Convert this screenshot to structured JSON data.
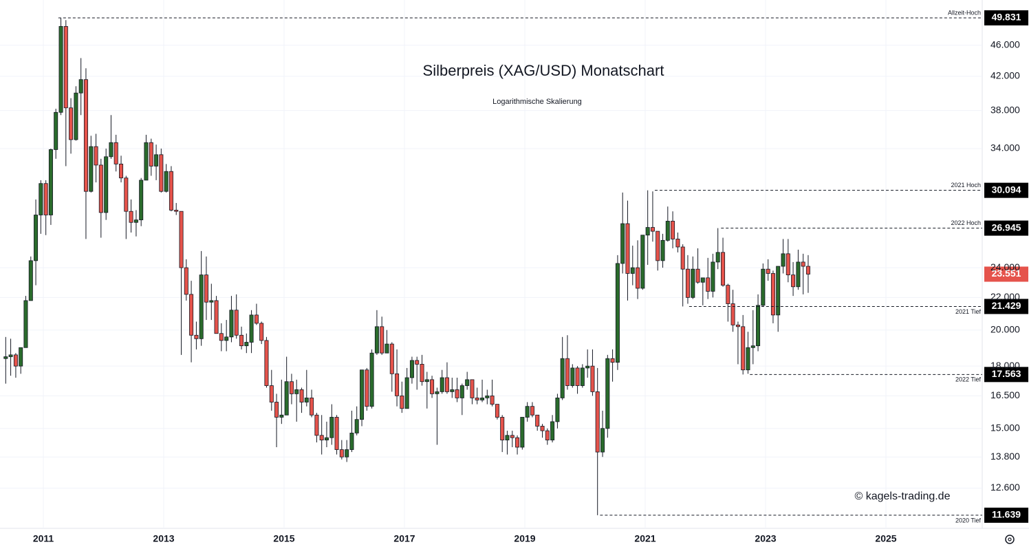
{
  "chart_data": {
    "type": "candlestick",
    "title": "Silberpreis (XAG/USD) Monatschart",
    "subtitle": "Logarithmische Skalierung",
    "watermark": "© kagels-trading.de",
    "log_scale": true,
    "grid": true,
    "up_color": "#2a6b2c",
    "down_color": "#e5534b",
    "xlim": [
      2010.28,
      2026.6
    ],
    "xticks": [
      2011,
      2013,
      2015,
      2017,
      2019,
      2021,
      2023,
      2025
    ],
    "ylim": [
      11.2,
      52.5
    ],
    "yticks": [
      {
        "value": 12.6,
        "label": "12.600"
      },
      {
        "value": 13.8,
        "label": "13.800"
      },
      {
        "value": 15,
        "label": "15.000"
      },
      {
        "value": 16.5,
        "label": "16.500"
      },
      {
        "value": 18,
        "label": "18.000"
      },
      {
        "value": 20,
        "label": "20.000"
      },
      {
        "value": 22,
        "label": "22.000"
      },
      {
        "value": 24,
        "label": "24.000"
      },
      {
        "value": 34,
        "label": "34.000"
      },
      {
        "value": 38,
        "label": "38.000"
      },
      {
        "value": 42,
        "label": "42.000"
      },
      {
        "value": 46,
        "label": "46.000"
      }
    ],
    "levels": [
      {
        "label": "Allzeit-Hoch",
        "value": 49.831,
        "x": 2011.25
      },
      {
        "label": "2021 Hoch",
        "value": 30.094,
        "x": 2021.16
      },
      {
        "label": "2022 Hoch",
        "value": 26.945,
        "x": 2022.26
      },
      {
        "label": "2021 Tief",
        "value": 21.429,
        "x": 2021.73
      },
      {
        "label": "2022 Tief",
        "value": 17.563,
        "x": 2022.74
      },
      {
        "label": "2020 Tief",
        "value": 11.639,
        "x": 2020.25
      }
    ],
    "x": [
      2010.375,
      2010.458,
      2010.542,
      2010.625,
      2010.708,
      2010.792,
      2010.875,
      2010.958,
      2011.042,
      2011.125,
      2011.208,
      2011.292,
      2011.375,
      2011.458,
      2011.542,
      2011.625,
      2011.708,
      2011.792,
      2011.875,
      2011.958,
      2012.042,
      2012.125,
      2012.208,
      2012.292,
      2012.375,
      2012.458,
      2012.542,
      2012.625,
      2012.708,
      2012.792,
      2012.875,
      2012.958,
      2013.042,
      2013.125,
      2013.208,
      2013.292,
      2013.375,
      2013.458,
      2013.542,
      2013.625,
      2013.708,
      2013.792,
      2013.875,
      2013.958,
      2014.042,
      2014.125,
      2014.208,
      2014.292,
      2014.375,
      2014.458,
      2014.542,
      2014.625,
      2014.708,
      2014.792,
      2014.875,
      2014.958,
      2015.042,
      2015.125,
      2015.208,
      2015.292,
      2015.375,
      2015.458,
      2015.542,
      2015.625,
      2015.708,
      2015.792,
      2015.875,
      2015.958,
      2016.042,
      2016.125,
      2016.208,
      2016.292,
      2016.375,
      2016.458,
      2016.542,
      2016.625,
      2016.708,
      2016.792,
      2016.875,
      2016.958,
      2017.042,
      2017.125,
      2017.208,
      2017.292,
      2017.375,
      2017.458,
      2017.542,
      2017.625,
      2017.708,
      2017.792,
      2017.875,
      2017.958,
      2018.042,
      2018.125,
      2018.208,
      2018.292,
      2018.375,
      2018.458,
      2018.542,
      2018.625,
      2018.708,
      2018.792,
      2018.875,
      2018.958,
      2019.042,
      2019.125,
      2019.208,
      2019.292,
      2019.375,
      2019.458,
      2019.542,
      2019.625,
      2019.708,
      2019.792,
      2019.875,
      2019.958,
      2020.042,
      2020.125,
      2020.208,
      2020.292,
      2020.375,
      2020.458,
      2020.542,
      2020.625,
      2020.708,
      2020.792,
      2020.875,
      2020.958,
      2021.042,
      2021.125,
      2021.208,
      2021.292,
      2021.375,
      2021.458,
      2021.542,
      2021.625,
      2021.708,
      2021.792,
      2021.875,
      2021.958,
      2022.042,
      2022.125,
      2022.208,
      2022.292,
      2022.375,
      2022.458,
      2022.542,
      2022.625,
      2022.708,
      2022.792,
      2022.875,
      2022.958,
      2023.042,
      2023.125,
      2023.208,
      2023.292,
      2023.375,
      2023.458,
      2023.542,
      2023.625,
      2023.708
    ],
    "ohlc": [
      [
        18.4,
        19.6,
        17.1,
        18.5
      ],
      [
        18.5,
        19.5,
        17.5,
        18.6
      ],
      [
        18.6,
        18.7,
        17.4,
        18.0
      ],
      [
        18.0,
        19.0,
        17.6,
        19.0
      ],
      [
        19.0,
        22.1,
        19.0,
        21.8
      ],
      [
        21.8,
        24.8,
        21.8,
        24.5
      ],
      [
        24.5,
        29.3,
        22.8,
        28.0
      ],
      [
        28.0,
        31.0,
        26.5,
        30.7
      ],
      [
        30.7,
        31.0,
        26.4,
        28.0
      ],
      [
        28.0,
        34.0,
        27.2,
        33.9
      ],
      [
        33.9,
        38.2,
        33.0,
        37.8
      ],
      [
        37.8,
        49.8,
        37.5,
        48.6
      ],
      [
        48.6,
        49.5,
        32.3,
        38.3
      ],
      [
        38.3,
        39.4,
        33.5,
        34.9
      ],
      [
        34.9,
        40.8,
        34.8,
        40.0
      ],
      [
        40.0,
        44.3,
        37.5,
        41.6
      ],
      [
        41.6,
        43.0,
        26.1,
        30.0
      ],
      [
        30.0,
        35.3,
        29.9,
        34.2
      ],
      [
        34.2,
        35.5,
        30.8,
        32.4
      ],
      [
        32.4,
        33.0,
        26.2,
        28.2
      ],
      [
        28.2,
        34.0,
        27.6,
        33.2
      ],
      [
        33.2,
        37.5,
        33.0,
        34.6
      ],
      [
        34.6,
        35.4,
        31.8,
        32.5
      ],
      [
        32.5,
        33.3,
        30.8,
        31.2
      ],
      [
        31.2,
        31.4,
        26.1,
        28.3
      ],
      [
        28.3,
        29.3,
        26.6,
        27.4
      ],
      [
        27.4,
        28.4,
        26.3,
        27.6
      ],
      [
        27.6,
        31.2,
        27.1,
        31.0
      ],
      [
        31.0,
        35.4,
        31.0,
        34.6
      ],
      [
        34.6,
        35.0,
        31.4,
        32.3
      ],
      [
        32.3,
        34.4,
        31.0,
        33.4
      ],
      [
        33.4,
        34.0,
        29.9,
        30.0
      ],
      [
        30.0,
        32.5,
        29.9,
        31.8
      ],
      [
        31.8,
        32.3,
        28.3,
        28.4
      ],
      [
        28.4,
        29.0,
        28.0,
        28.3
      ],
      [
        28.3,
        28.3,
        18.6,
        24.0
      ],
      [
        24.0,
        24.6,
        21.8,
        22.2
      ],
      [
        22.2,
        23.1,
        18.2,
        19.7
      ],
      [
        19.7,
        20.5,
        18.9,
        19.5
      ],
      [
        19.5,
        25.2,
        19.1,
        23.5
      ],
      [
        23.5,
        24.8,
        20.6,
        21.7
      ],
      [
        21.7,
        22.9,
        20.6,
        21.8
      ],
      [
        21.8,
        22.1,
        19.8,
        19.8
      ],
      [
        19.8,
        20.4,
        18.8,
        19.4
      ],
      [
        19.4,
        20.6,
        18.8,
        19.6
      ],
      [
        19.6,
        22.1,
        19.3,
        21.2
      ],
      [
        21.2,
        22.2,
        19.5,
        19.7
      ],
      [
        19.7,
        20.2,
        18.9,
        19.1
      ],
      [
        19.1,
        19.8,
        18.7,
        19.3
      ],
      [
        19.3,
        21.2,
        18.7,
        20.9
      ],
      [
        20.9,
        21.6,
        20.3,
        20.4
      ],
      [
        20.4,
        20.5,
        19.2,
        19.4
      ],
      [
        19.4,
        19.6,
        16.9,
        17.0
      ],
      [
        17.0,
        17.8,
        15.8,
        16.2
      ],
      [
        16.2,
        16.6,
        14.2,
        15.5
      ],
      [
        15.5,
        17.3,
        15.2,
        15.6
      ],
      [
        15.6,
        18.5,
        15.6,
        17.2
      ],
      [
        17.2,
        17.6,
        16.1,
        16.6
      ],
      [
        16.6,
        17.3,
        15.3,
        16.8
      ],
      [
        16.8,
        16.9,
        15.7,
        16.2
      ],
      [
        16.2,
        17.8,
        16.0,
        16.4
      ],
      [
        16.4,
        16.8,
        15.5,
        15.6
      ],
      [
        15.6,
        15.7,
        14.4,
        14.7
      ],
      [
        14.7,
        15.6,
        13.9,
        14.5
      ],
      [
        14.5,
        15.3,
        14.2,
        14.6
      ],
      [
        14.6,
        16.1,
        14.3,
        15.5
      ],
      [
        15.5,
        15.6,
        13.9,
        14.1
      ],
      [
        14.1,
        14.5,
        13.7,
        13.8
      ],
      [
        13.8,
        14.5,
        13.6,
        14.1
      ],
      [
        14.1,
        15.8,
        14.0,
        14.8
      ],
      [
        14.8,
        16.0,
        14.7,
        15.4
      ],
      [
        15.4,
        17.8,
        15.1,
        17.8
      ],
      [
        17.8,
        17.9,
        15.8,
        16.0
      ],
      [
        16.0,
        18.9,
        15.9,
        18.7
      ],
      [
        18.7,
        21.2,
        18.6,
        20.2
      ],
      [
        20.2,
        20.8,
        18.6,
        18.7
      ],
      [
        18.7,
        20.0,
        18.7,
        19.2
      ],
      [
        19.2,
        19.3,
        16.7,
        17.6
      ],
      [
        17.6,
        18.9,
        16.0,
        16.5
      ],
      [
        16.5,
        17.2,
        15.7,
        15.9
      ],
      [
        15.9,
        17.9,
        15.9,
        17.4
      ],
      [
        17.4,
        18.5,
        17.1,
        18.3
      ],
      [
        18.3,
        18.5,
        16.8,
        18.1
      ],
      [
        18.1,
        18.6,
        17.0,
        17.2
      ],
      [
        17.2,
        17.7,
        15.9,
        17.3
      ],
      [
        17.3,
        17.5,
        16.4,
        16.6
      ],
      [
        16.6,
        16.9,
        14.3,
        16.7
      ],
      [
        16.7,
        17.8,
        16.6,
        17.4
      ],
      [
        17.4,
        18.2,
        16.6,
        16.7
      ],
      [
        16.7,
        17.4,
        16.4,
        16.8
      ],
      [
        16.8,
        17.4,
        16.2,
        16.4
      ],
      [
        16.4,
        17.1,
        15.6,
        17.0
      ],
      [
        17.0,
        17.7,
        16.8,
        17.3
      ],
      [
        17.3,
        17.3,
        16.1,
        16.4
      ],
      [
        16.4,
        16.9,
        16.1,
        16.3
      ],
      [
        16.3,
        17.3,
        16.2,
        16.4
      ],
      [
        16.4,
        16.8,
        16.1,
        16.5
      ],
      [
        16.5,
        17.3,
        16.0,
        16.1
      ],
      [
        16.1,
        16.1,
        15.4,
        15.5
      ],
      [
        15.5,
        15.6,
        14.0,
        14.5
      ],
      [
        14.5,
        14.9,
        13.9,
        14.7
      ],
      [
        14.7,
        14.9,
        14.2,
        14.6
      ],
      [
        14.6,
        14.7,
        13.9,
        14.2
      ],
      [
        14.2,
        15.5,
        14.1,
        15.5
      ],
      [
        15.5,
        16.2,
        15.3,
        16.0
      ],
      [
        16.0,
        16.2,
        15.5,
        15.6
      ],
      [
        15.6,
        15.6,
        14.9,
        15.1
      ],
      [
        15.1,
        15.2,
        14.6,
        14.9
      ],
      [
        14.9,
        15.0,
        14.3,
        14.5
      ],
      [
        14.5,
        15.6,
        14.4,
        15.3
      ],
      [
        15.3,
        16.6,
        15.0,
        16.4
      ],
      [
        16.4,
        19.6,
        16.3,
        18.4
      ],
      [
        18.4,
        19.7,
        16.8,
        17.0
      ],
      [
        17.0,
        18.1,
        16.9,
        17.9
      ],
      [
        17.9,
        18.0,
        16.6,
        17.0
      ],
      [
        17.0,
        18.1,
        16.9,
        17.9
      ],
      [
        17.9,
        18.9,
        17.4,
        18.0
      ],
      [
        18.0,
        18.9,
        16.5,
        16.7
      ],
      [
        16.7,
        17.9,
        11.639,
        14.0
      ],
      [
        14.0,
        15.8,
        13.8,
        15.0
      ],
      [
        15.0,
        18.6,
        14.6,
        18.4
      ],
      [
        18.4,
        18.9,
        17.2,
        18.2
      ],
      [
        18.2,
        24.9,
        17.8,
        24.3
      ],
      [
        24.3,
        29.9,
        23.6,
        27.3
      ],
      [
        27.3,
        29.2,
        21.8,
        23.6
      ],
      [
        23.6,
        25.6,
        22.8,
        24.0
      ],
      [
        24.0,
        26.0,
        21.9,
        22.6
      ],
      [
        22.6,
        26.4,
        22.5,
        26.4
      ],
      [
        26.4,
        30.094,
        24.2,
        27.0
      ],
      [
        27.0,
        30.0,
        25.9,
        26.7
      ],
      [
        26.7,
        26.7,
        23.8,
        24.5
      ],
      [
        24.5,
        26.5,
        24.0,
        26.0
      ],
      [
        26.0,
        28.7,
        25.9,
        27.5
      ],
      [
        27.5,
        28.3,
        25.4,
        26.1
      ],
      [
        26.1,
        26.6,
        25.1,
        25.5
      ],
      [
        25.5,
        25.7,
        21.429,
        23.9
      ],
      [
        23.9,
        24.9,
        21.6,
        22.0
      ],
      [
        22.0,
        24.8,
        21.9,
        23.9
      ],
      [
        23.9,
        25.4,
        22.9,
        23.0
      ],
      [
        23.0,
        23.3,
        21.5,
        23.3
      ],
      [
        23.3,
        24.7,
        21.9,
        22.4
      ],
      [
        22.4,
        25.0,
        22.0,
        24.4
      ],
      [
        24.4,
        26.945,
        23.9,
        25.1
      ],
      [
        25.1,
        26.2,
        22.7,
        22.8
      ],
      [
        22.8,
        22.9,
        20.5,
        21.6
      ],
      [
        21.6,
        22.5,
        19.9,
        20.3
      ],
      [
        20.3,
        20.5,
        18.1,
        20.2
      ],
      [
        20.2,
        20.9,
        17.563,
        17.8
      ],
      [
        17.8,
        19.9,
        17.6,
        19.0
      ],
      [
        19.0,
        21.2,
        18.1,
        19.1
      ],
      [
        19.1,
        22.2,
        18.8,
        21.5
      ],
      [
        21.5,
        24.3,
        21.4,
        23.9
      ],
      [
        23.9,
        24.6,
        23.1,
        23.6
      ],
      [
        23.6,
        23.8,
        20.4,
        20.9
      ],
      [
        20.9,
        24.1,
        19.9,
        24.1
      ],
      [
        24.1,
        26.1,
        23.6,
        25.0
      ],
      [
        25.0,
        26.1,
        23.0,
        23.5
      ],
      [
        23.5,
        24.4,
        22.1,
        22.7
      ],
      [
        22.7,
        25.3,
        22.5,
        24.4
      ],
      [
        24.4,
        25.0,
        22.2,
        24.1
      ],
      [
        24.1,
        24.9,
        22.3,
        23.551
      ]
    ]
  }
}
